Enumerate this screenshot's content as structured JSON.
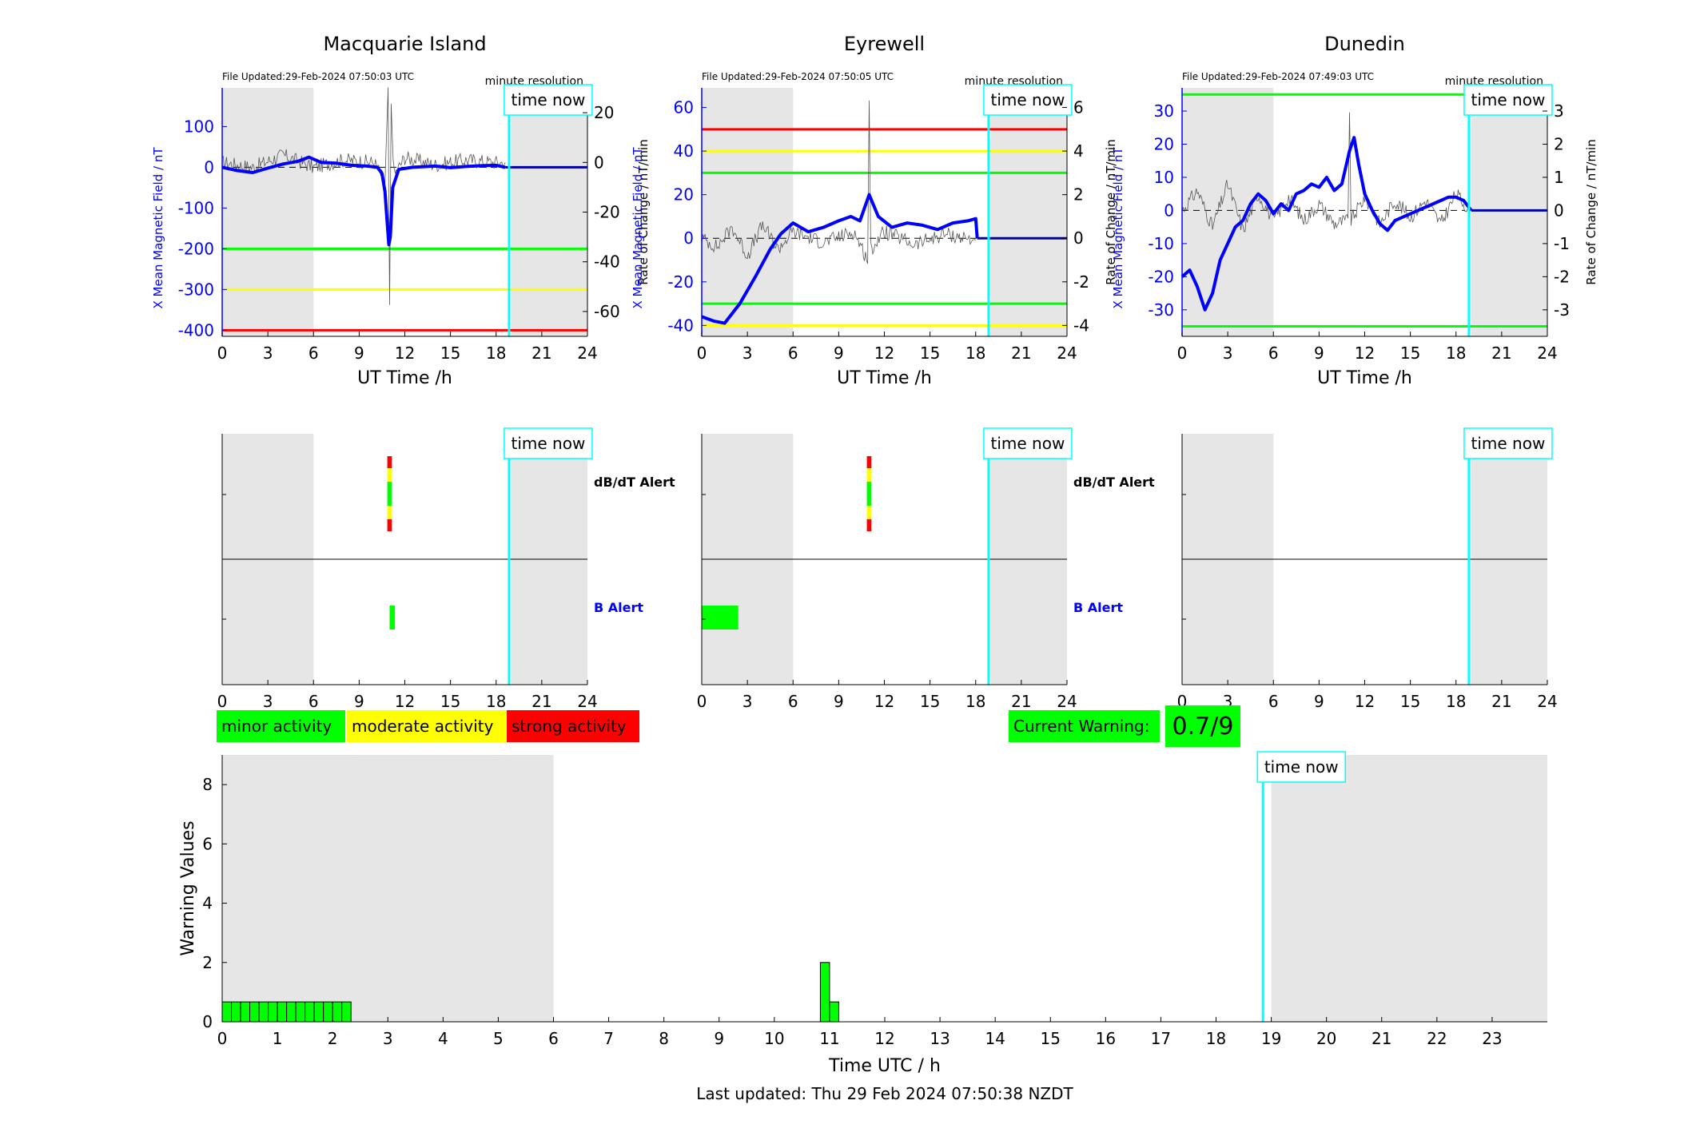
{
  "figure": {
    "footer": "Last updated: Thu 29 Feb 2024 07:50:38 NZDT"
  },
  "colors": {
    "field": "#0000ff",
    "rate": "#555555",
    "green": "#00ff00",
    "yellow": "#ffff00",
    "red": "#ff0000",
    "cyan": "#00ffff",
    "shade": "#e6e6e6"
  },
  "stations": [
    {
      "title": "Macquarie Island",
      "file_updated": "File Updated:29-Feb-2024 07:50:03 UTC",
      "resolution": "minute resolution",
      "time_now_label": "time now",
      "xlabel": "UT Time /h",
      "ylabel_left": "X Mean Magnetic Field / nT",
      "ylabel_right": "Rate of Change / nT/min",
      "xticks": [
        "0",
        "3",
        "6",
        "9",
        "12",
        "15",
        "18",
        "21",
        "24"
      ],
      "ylim_left": [
        -415,
        195
      ],
      "ylim_right": [
        -70,
        30
      ],
      "yticks_left": [
        100,
        0,
        -100,
        -200,
        -300,
        -400
      ],
      "yticks_right": [
        20,
        0,
        -20,
        -40,
        -60
      ],
      "alert_lines": [
        {
          "level": "green",
          "value": -200
        },
        {
          "level": "yellow",
          "value": -300
        },
        {
          "level": "red",
          "value": -400
        }
      ],
      "field_points": [
        [
          0,
          0
        ],
        [
          1,
          -8
        ],
        [
          2,
          -13
        ],
        [
          3,
          -2
        ],
        [
          4,
          8
        ],
        [
          5,
          15
        ],
        [
          5.7,
          25
        ],
        [
          6.5,
          12
        ],
        [
          7.5,
          10
        ],
        [
          8.5,
          5
        ],
        [
          9.5,
          3
        ],
        [
          10.2,
          0
        ],
        [
          10.5,
          -15
        ],
        [
          10.7,
          -60
        ],
        [
          10.85,
          -140
        ],
        [
          10.95,
          -190
        ],
        [
          11.05,
          -170
        ],
        [
          11.2,
          -50
        ],
        [
          11.6,
          -5
        ],
        [
          12.5,
          0
        ],
        [
          14,
          3
        ],
        [
          15,
          -1
        ],
        [
          16,
          2
        ],
        [
          17,
          4
        ],
        [
          18,
          5
        ],
        [
          18.6,
          0
        ]
      ],
      "rate_points": [
        [
          0,
          0
        ],
        [
          2,
          -2
        ],
        [
          4,
          3
        ],
        [
          6,
          -2
        ],
        [
          8,
          1
        ],
        [
          10,
          0
        ],
        [
          10.7,
          -8
        ],
        [
          10.9,
          28
        ],
        [
          11.0,
          -60
        ],
        [
          11.1,
          22
        ],
        [
          11.3,
          -5
        ],
        [
          12,
          2
        ],
        [
          14,
          -1
        ],
        [
          16,
          1
        ],
        [
          18,
          0
        ],
        [
          18.6,
          0
        ]
      ],
      "now_projection": [
        [
          18.6,
          0
        ],
        [
          24,
          0
        ]
      ],
      "dbdt_alert_label": "dB/dT Alert",
      "b_alert_label": "B Alert",
      "dbdt_segments": [
        {
          "t0": 10.85,
          "t1": 11.15,
          "f0": 0.0,
          "f1": 0.16,
          "level": "red"
        },
        {
          "t0": 10.85,
          "t1": 11.15,
          "f0": 0.16,
          "f1": 0.34,
          "level": "yellow"
        },
        {
          "t0": 10.85,
          "t1": 11.15,
          "f0": 0.34,
          "f1": 0.66,
          "level": "green"
        },
        {
          "t0": 10.85,
          "t1": 11.15,
          "f0": 0.66,
          "f1": 0.84,
          "level": "yellow"
        },
        {
          "t0": 10.85,
          "t1": 11.15,
          "f0": 0.84,
          "f1": 1.0,
          "level": "red"
        }
      ],
      "b_segments": [
        {
          "t0": 11.0,
          "t1": 11.35,
          "level": "green"
        }
      ]
    },
    {
      "title": "Eyrewell",
      "file_updated": "File Updated:29-Feb-2024 07:50:05 UTC",
      "resolution": "minute resolution",
      "time_now_label": "time now",
      "xlabel": "UT Time /h",
      "ylabel_left": "X Mean Magnetic Field / nT",
      "ylabel_right": "Rate of Change / nT/min",
      "xticks": [
        "0",
        "3",
        "6",
        "9",
        "12",
        "15",
        "18",
        "21",
        "24"
      ],
      "ylim_left": [
        -45,
        69
      ],
      "ylim_right": [
        -4.5,
        6.9
      ],
      "yticks_left": [
        60,
        40,
        20,
        0,
        -20,
        -40
      ],
      "yticks_right": [
        6,
        4,
        2,
        0,
        -2,
        -4
      ],
      "alert_lines": [
        {
          "level": "red",
          "value": 50
        },
        {
          "level": "yellow",
          "value": 40
        },
        {
          "level": "green",
          "value": 30
        },
        {
          "level": "green",
          "value": -30
        },
        {
          "level": "yellow",
          "value": -40
        }
      ],
      "field_points": [
        [
          0,
          -36
        ],
        [
          0.8,
          -38
        ],
        [
          1.5,
          -39
        ],
        [
          2.5,
          -30
        ],
        [
          3.5,
          -18
        ],
        [
          4.5,
          -5
        ],
        [
          5.2,
          2
        ],
        [
          6,
          7
        ],
        [
          7,
          3
        ],
        [
          8,
          5
        ],
        [
          9,
          8
        ],
        [
          9.8,
          10
        ],
        [
          10.4,
          8
        ],
        [
          11.0,
          20
        ],
        [
          11.6,
          10
        ],
        [
          12.5,
          5
        ],
        [
          13.5,
          7
        ],
        [
          14.5,
          6
        ],
        [
          15.5,
          4
        ],
        [
          16.5,
          7
        ],
        [
          17.5,
          8
        ],
        [
          18,
          9
        ],
        [
          18.1,
          0
        ]
      ],
      "rate_points": [
        [
          0,
          0
        ],
        [
          1,
          -0.4
        ],
        [
          2,
          0.5
        ],
        [
          3,
          -0.8
        ],
        [
          4,
          0.6
        ],
        [
          5,
          -0.5
        ],
        [
          6,
          0.3
        ],
        [
          8,
          -0.2
        ],
        [
          10,
          0.3
        ],
        [
          10.9,
          -1.0
        ],
        [
          11.0,
          6.2
        ],
        [
          11.1,
          -0.5
        ],
        [
          12,
          0.3
        ],
        [
          14,
          -0.3
        ],
        [
          16,
          0.2
        ],
        [
          18,
          -0.1
        ]
      ],
      "now_projection": [
        [
          18.1,
          0
        ],
        [
          24,
          0
        ]
      ],
      "dbdt_alert_label": "dB/dT Alert",
      "b_alert_label": "B Alert",
      "dbdt_segments": [
        {
          "t0": 10.85,
          "t1": 11.15,
          "f0": 0.0,
          "f1": 0.16,
          "level": "red"
        },
        {
          "t0": 10.85,
          "t1": 11.15,
          "f0": 0.16,
          "f1": 0.34,
          "level": "yellow"
        },
        {
          "t0": 10.85,
          "t1": 11.15,
          "f0": 0.34,
          "f1": 0.66,
          "level": "green"
        },
        {
          "t0": 10.85,
          "t1": 11.15,
          "f0": 0.66,
          "f1": 0.84,
          "level": "yellow"
        },
        {
          "t0": 10.85,
          "t1": 11.15,
          "f0": 0.84,
          "f1": 1.0,
          "level": "red"
        }
      ],
      "b_segments": [
        {
          "t0": 0.0,
          "t1": 2.4,
          "level": "green"
        }
      ]
    },
    {
      "title": "Dunedin",
      "file_updated": "File Updated:29-Feb-2024 07:49:03 UTC",
      "resolution": "minute resolution",
      "time_now_label": "time now",
      "xlabel": "UT Time /h",
      "ylabel_left": "X Mean Magnetic Field / nT",
      "ylabel_right": "Rate of Change / nT/min",
      "xticks": [
        "0",
        "3",
        "6",
        "9",
        "12",
        "15",
        "18",
        "21",
        "24"
      ],
      "ylim_left": [
        -38,
        37
      ],
      "ylim_right": [
        -3.8,
        3.7
      ],
      "yticks_left": [
        30,
        20,
        10,
        0,
        -10,
        -20,
        -30
      ],
      "yticks_right": [
        3,
        2,
        1,
        0,
        -1,
        -2,
        -3
      ],
      "alert_lines": [
        {
          "level": "green",
          "value": 35
        },
        {
          "level": "green",
          "value": -35
        }
      ],
      "field_points": [
        [
          0,
          -20
        ],
        [
          0.5,
          -18
        ],
        [
          1,
          -23
        ],
        [
          1.5,
          -30
        ],
        [
          2,
          -25
        ],
        [
          2.5,
          -15
        ],
        [
          3,
          -10
        ],
        [
          3.5,
          -5
        ],
        [
          4,
          -3
        ],
        [
          4.5,
          2
        ],
        [
          5,
          5
        ],
        [
          5.5,
          3
        ],
        [
          6,
          -1
        ],
        [
          6.5,
          2
        ],
        [
          7,
          0
        ],
        [
          7.5,
          5
        ],
        [
          8,
          6
        ],
        [
          8.5,
          8
        ],
        [
          9,
          7
        ],
        [
          9.5,
          10
        ],
        [
          10,
          6
        ],
        [
          10.5,
          8
        ],
        [
          11.0,
          18
        ],
        [
          11.3,
          22
        ],
        [
          11.6,
          14
        ],
        [
          12.0,
          5
        ],
        [
          12.5,
          0
        ],
        [
          13.0,
          -4
        ],
        [
          13.5,
          -6
        ],
        [
          14,
          -3
        ],
        [
          15,
          -1
        ],
        [
          16,
          1
        ],
        [
          17,
          3
        ],
        [
          17.5,
          4
        ],
        [
          18,
          4
        ],
        [
          18.5,
          3
        ],
        [
          19,
          0
        ]
      ],
      "rate_points": [
        [
          0,
          0
        ],
        [
          1,
          0.6
        ],
        [
          2,
          -0.5
        ],
        [
          3,
          0.8
        ],
        [
          4,
          -0.6
        ],
        [
          5,
          0.5
        ],
        [
          6,
          -0.3
        ],
        [
          7,
          0.4
        ],
        [
          8,
          -0.3
        ],
        [
          9,
          0.2
        ],
        [
          10,
          -0.4
        ],
        [
          10.9,
          -0.3
        ],
        [
          11.0,
          3.0
        ],
        [
          11.1,
          -0.3
        ],
        [
          12,
          0.4
        ],
        [
          13,
          -0.4
        ],
        [
          14,
          0.3
        ],
        [
          15,
          -0.2
        ],
        [
          16,
          0.3
        ],
        [
          17,
          -0.4
        ],
        [
          18,
          0.5
        ],
        [
          18.9,
          0
        ]
      ],
      "now_projection": [
        [
          19,
          0
        ],
        [
          24,
          0
        ]
      ],
      "dbdt_alert_label": "",
      "b_alert_label": "",
      "dbdt_segments": [],
      "b_segments": []
    }
  ],
  "shading": {
    "top_night": [
      [
        0,
        6
      ],
      [
        19,
        24
      ]
    ],
    "bottom_night": [
      [
        0,
        6
      ],
      [
        19,
        24
      ]
    ]
  },
  "time_now_hour": 18.85,
  "legend": [
    {
      "label": "minor activity",
      "level": "green"
    },
    {
      "label": "moderate activity",
      "level": "yellow"
    },
    {
      "label": "strong activity",
      "level": "red"
    }
  ],
  "current_warning": {
    "label": "Current Warning:",
    "value": "0.7/9"
  },
  "warning_chart": {
    "ylabel": "Warning Values",
    "xlabel": "Time UTC / h",
    "time_now_label": "time now",
    "ylim": [
      0,
      9
    ],
    "xlim": [
      0,
      24
    ],
    "yticks": [
      0,
      2,
      4,
      6,
      8
    ],
    "xticks": [
      "0",
      "1",
      "2",
      "3",
      "4",
      "5",
      "6",
      "7",
      "8",
      "9",
      "10",
      "11",
      "12",
      "13",
      "14",
      "15",
      "16",
      "17",
      "18",
      "19",
      "20",
      "21",
      "22",
      "23"
    ],
    "bars": [
      {
        "t": 0.0,
        "v": 0.67
      },
      {
        "t": 0.1667,
        "v": 0.67
      },
      {
        "t": 0.3333,
        "v": 0.67
      },
      {
        "t": 0.5,
        "v": 0.67
      },
      {
        "t": 0.6667,
        "v": 0.67
      },
      {
        "t": 0.8333,
        "v": 0.67
      },
      {
        "t": 1.0,
        "v": 0.67
      },
      {
        "t": 1.1667,
        "v": 0.67
      },
      {
        "t": 1.3333,
        "v": 0.67
      },
      {
        "t": 1.5,
        "v": 0.67
      },
      {
        "t": 1.6667,
        "v": 0.67
      },
      {
        "t": 1.8333,
        "v": 0.67
      },
      {
        "t": 2.0,
        "v": 0.67
      },
      {
        "t": 2.1667,
        "v": 0.67
      },
      {
        "t": 10.8333,
        "v": 2.0
      },
      {
        "t": 11.0,
        "v": 0.67
      }
    ],
    "bar_width_h": 0.1667
  },
  "chart_data": [
    {
      "type": "line",
      "title": "Macquarie Island",
      "xlabel": "UT Time /h",
      "ylabel": "X Mean Magnetic Field / nT",
      "ylabel_right": "Rate of Change / nT/min",
      "xlim": [
        0,
        24
      ],
      "ylim": [
        -415,
        195
      ],
      "series": [
        {
          "x": [
            0,
            1,
            2,
            3,
            4,
            5,
            5.7,
            6.5,
            7.5,
            8.5,
            9.5,
            10.2,
            10.5,
            10.7,
            10.85,
            10.95,
            11.05,
            11.2,
            11.6,
            12.5,
            14,
            15,
            16,
            17,
            18,
            18.6
          ],
          "y": [
            0,
            -8,
            -13,
            -2,
            8,
            15,
            25,
            12,
            10,
            5,
            3,
            0,
            -15,
            -60,
            -140,
            -190,
            -170,
            -50,
            -5,
            0,
            3,
            -1,
            2,
            4,
            5,
            0
          ]
        }
      ]
    },
    {
      "type": "line",
      "title": "Eyrewell",
      "xlabel": "UT Time /h",
      "ylabel": "X Mean Magnetic Field / nT",
      "ylabel_right": "Rate of Change / nT/min",
      "xlim": [
        0,
        24
      ],
      "ylim": [
        -45,
        69
      ],
      "series": [
        {
          "x": [
            0,
            0.8,
            1.5,
            2.5,
            3.5,
            4.5,
            5.2,
            6,
            7,
            8,
            9,
            9.8,
            10.4,
            11.0,
            11.6,
            12.5,
            13.5,
            14.5,
            15.5,
            16.5,
            17.5,
            18,
            18.1
          ],
          "y": [
            -36,
            -38,
            -39,
            -30,
            -18,
            -5,
            2,
            7,
            3,
            5,
            8,
            10,
            8,
            20,
            10,
            5,
            7,
            6,
            4,
            7,
            8,
            9,
            0
          ]
        }
      ]
    },
    {
      "type": "line",
      "title": "Dunedin",
      "xlabel": "UT Time /h",
      "ylabel": "X Mean Magnetic Field / nT",
      "ylabel_right": "Rate of Change / nT/min",
      "xlim": [
        0,
        24
      ],
      "ylim": [
        -38,
        37
      ],
      "series": [
        {
          "x": [
            0,
            0.5,
            1,
            1.5,
            2,
            2.5,
            3,
            3.5,
            4,
            4.5,
            5,
            5.5,
            6,
            6.5,
            7,
            7.5,
            8,
            8.5,
            9,
            9.5,
            10,
            10.5,
            11.0,
            11.3,
            11.6,
            12.0,
            12.5,
            13.0,
            13.5,
            14,
            15,
            16,
            17,
            17.5,
            18,
            18.5,
            19
          ],
          "y": [
            -20,
            -18,
            -23,
            -30,
            -25,
            -15,
            -10,
            -5,
            -3,
            2,
            5,
            3,
            -1,
            2,
            0,
            5,
            6,
            8,
            7,
            10,
            6,
            8,
            18,
            22,
            14,
            5,
            0,
            -4,
            -6,
            -3,
            -1,
            1,
            3,
            4,
            4,
            3,
            0
          ]
        }
      ]
    },
    {
      "type": "bar",
      "title": "",
      "xlabel": "Time UTC / h",
      "ylabel": "Warning Values",
      "xlim": [
        0,
        24
      ],
      "ylim": [
        0,
        9
      ],
      "x": [
        0.0,
        0.1667,
        0.3333,
        0.5,
        0.6667,
        0.8333,
        1.0,
        1.1667,
        1.3333,
        1.5,
        1.6667,
        1.8333,
        2.0,
        2.1667,
        10.8333,
        11.0
      ],
      "values": [
        0.67,
        0.67,
        0.67,
        0.67,
        0.67,
        0.67,
        0.67,
        0.67,
        0.67,
        0.67,
        0.67,
        0.67,
        0.67,
        0.67,
        2.0,
        0.67
      ]
    }
  ]
}
